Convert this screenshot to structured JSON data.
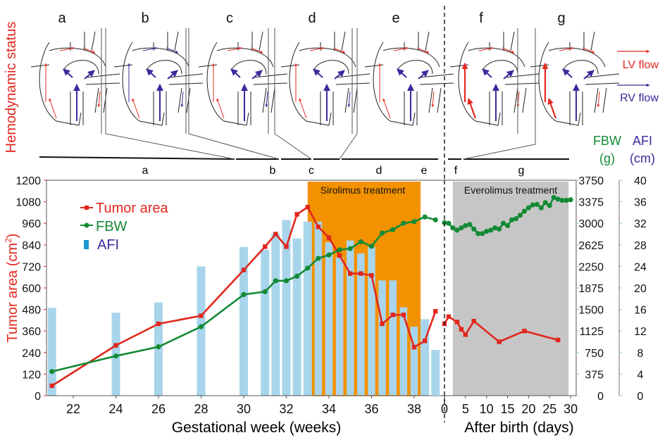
{
  "hemodynamic": {
    "side_label": "Hemodynamic status",
    "panels": [
      "a",
      "b",
      "c",
      "d",
      "e",
      "f",
      "g"
    ],
    "legend": [
      {
        "label": "LV flow",
        "color": "#e8281e"
      },
      {
        "label": "RV flow",
        "color": "#3a2b9c"
      }
    ]
  },
  "periods": [
    "a",
    "b",
    "c",
    "d",
    "e",
    "f",
    "g"
  ],
  "chart_data": {
    "type": "line+bar",
    "title": "",
    "xlabel_left": "Gestational week (weeks)",
    "xlabel_right": "After birth (days)",
    "ylabel_left": "Tumor area (cm²)",
    "ylabel_fbw": "FBW (g)",
    "ylabel_afi": "AFI (cm)",
    "ylabel_fbw_lines": [
      "FBW",
      "(g)"
    ],
    "ylabel_afi_lines": [
      "AFI",
      "(cm)"
    ],
    "ylabel_left_main": "Tumor area (cm",
    "ylabel_left_sup": "2",
    "ylabel_left_end": ")",
    "ylim_left": [
      0,
      1200
    ],
    "ylim_fbw": [
      0,
      3750
    ],
    "ylim_afi": [
      0,
      40
    ],
    "xlim_gestational": [
      20.9,
      39.5
    ],
    "xlim_after_birth": [
      0,
      30
    ],
    "yticks_left": [
      0,
      120,
      240,
      360,
      480,
      600,
      720,
      840,
      960,
      1080,
      1200
    ],
    "yticks_fbw": [
      0,
      375,
      750,
      1125,
      1500,
      1875,
      2250,
      2625,
      3000,
      3375,
      3750
    ],
    "yticks_afi": [
      0,
      4,
      8,
      12,
      16,
      20,
      24,
      28,
      32,
      36,
      40
    ],
    "xticks_gestational": [
      22,
      24,
      26,
      28,
      30,
      32,
      34,
      36,
      38
    ],
    "xticks_after_birth": [
      0,
      5,
      10,
      15,
      20,
      25,
      30
    ],
    "legend": [
      {
        "label": "Tumor area",
        "color": "#e2261c"
      },
      {
        "label": "FBW",
        "color": "#138a34"
      },
      {
        "label": "AFI",
        "color": "#1a9ad6",
        "text_color": "#3a2b9c"
      }
    ],
    "shaded_regions": [
      {
        "label": "Sirolimus treatment",
        "axis": "gestational",
        "from": 33.0,
        "to": 38.3,
        "color": "#f39200"
      },
      {
        "label": "Everolimus treatment",
        "axis": "after_birth",
        "from": 2,
        "to": 29.5,
        "color": "#c6c6c6"
      }
    ],
    "birth_marker": "dashed line at day 0",
    "series": [
      {
        "name": "Tumor area",
        "axis": "left",
        "segment": "gestational",
        "x": [
          21,
          24,
          26,
          28,
          30,
          31,
          31.5,
          32,
          32.5,
          33,
          33.5,
          34,
          34.5,
          35,
          35.5,
          36,
          36.5,
          37,
          37.5,
          38,
          38.5,
          39
        ],
        "y": [
          55,
          280,
          400,
          445,
          700,
          830,
          900,
          830,
          1010,
          1050,
          940,
          880,
          780,
          680,
          680,
          670,
          400,
          450,
          450,
          270,
          305,
          470
        ]
      },
      {
        "name": "Tumor area",
        "axis": "left",
        "segment": "after_birth",
        "x": [
          0,
          1,
          3,
          4,
          5,
          7,
          13,
          19,
          27
        ],
        "y": [
          400,
          440,
          410,
          370,
          340,
          415,
          300,
          360,
          310
        ]
      },
      {
        "name": "FBW",
        "axis": "fbw",
        "segment": "gestational",
        "x": [
          21,
          24,
          26,
          28,
          30,
          31,
          31.5,
          32,
          32.5,
          33,
          33.5,
          34,
          34.5,
          35,
          35.5,
          36,
          36.5,
          37,
          37.5,
          38,
          38.5,
          39
        ],
        "y": [
          420,
          690,
          850,
          1200,
          1760,
          1810,
          2000,
          2000,
          2080,
          2220,
          2390,
          2450,
          2540,
          2560,
          2680,
          2600,
          2830,
          2890,
          3000,
          3030,
          3110,
          3060
        ]
      },
      {
        "name": "FBW",
        "axis": "fbw",
        "segment": "after_birth",
        "x": [
          0,
          1,
          2,
          3,
          4,
          5,
          6,
          7,
          8,
          9,
          10,
          11,
          12,
          13,
          14,
          15,
          16,
          17,
          18,
          19,
          20,
          21,
          22,
          23,
          24,
          25,
          26,
          27,
          28,
          29,
          30
        ],
        "y": [
          3010,
          3000,
          2920,
          2880,
          2920,
          2960,
          2980,
          2900,
          2820,
          2820,
          2860,
          2880,
          2920,
          2900,
          3000,
          2960,
          3060,
          3080,
          3140,
          3210,
          3270,
          3320,
          3330,
          3270,
          3360,
          3310,
          3450,
          3420,
          3400,
          3400,
          3410
        ]
      },
      {
        "name": "AFI",
        "axis": "afi",
        "type": "bar",
        "segment": "gestational",
        "x": [
          21,
          24,
          26,
          28,
          30,
          31,
          31.5,
          32,
          32.5,
          33,
          33.5,
          34,
          34.5,
          35,
          35.5,
          36,
          36.5,
          37,
          37.5,
          38,
          38.5,
          39
        ],
        "y": [
          16.3,
          15.4,
          17.3,
          24.0,
          27.6,
          27.1,
          30.1,
          32.6,
          29.2,
          32.3,
          32.4,
          28.6,
          25.8,
          28.9,
          26.5,
          27.7,
          21.5,
          21.5,
          16.5,
          12.9,
          14.2,
          8.5
        ]
      }
    ]
  }
}
